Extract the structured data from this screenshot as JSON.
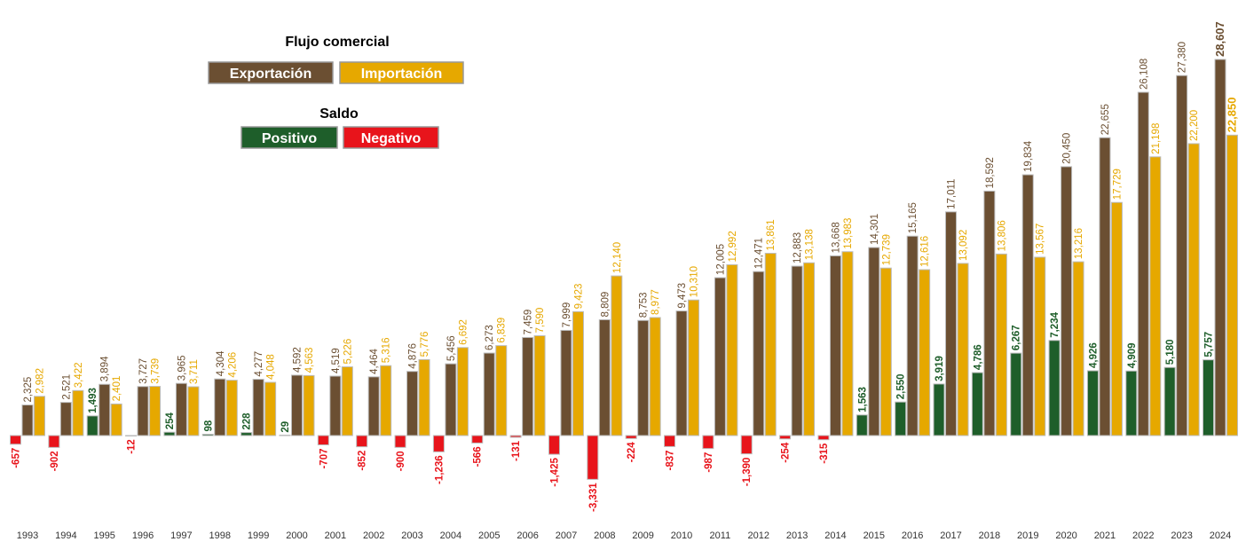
{
  "chart_data": {
    "type": "bar",
    "legend_title": "Flujo comercial",
    "categories": [
      "1993",
      "1994",
      "1995",
      "1996",
      "1997",
      "1998",
      "1999",
      "2000",
      "2001",
      "2002",
      "2003",
      "2004",
      "2005",
      "2006",
      "2007",
      "2008",
      "2009",
      "2010",
      "2011",
      "2012",
      "2013",
      "2014",
      "2015",
      "2016",
      "2017",
      "2018",
      "2019",
      "2020",
      "2021",
      "2022",
      "2023",
      "2024"
    ],
    "series": [
      {
        "name": "Exportación",
        "color": "#6b4f32",
        "values": [
          2325,
          2521,
          3894,
          3727,
          3965,
          4304,
          4277,
          4592,
          4519,
          4464,
          4876,
          5456,
          6273,
          7459,
          7999,
          8809,
          8753,
          9473,
          12005,
          12471,
          12883,
          13668,
          14301,
          15165,
          17011,
          18592,
          19834,
          20450,
          22655,
          26108,
          27380,
          28607
        ],
        "value_labels": [
          "2,325",
          "2,521",
          "3,894",
          "3,727",
          "3,965",
          "4,304",
          "4,277",
          "4,592",
          "4,519",
          "4,464",
          "4,876",
          "5,456",
          "6,273",
          "7,459",
          "7,999",
          "8,809",
          "8,753",
          "9,473",
          "12,005",
          "12,471",
          "12,883",
          "13,668",
          "14,301",
          "15,165",
          "17,011",
          "18,592",
          "19,834",
          "20,450",
          "22,655",
          "26,108",
          "27,380",
          "28,607"
        ]
      },
      {
        "name": "Importación",
        "color": "#e6a800",
        "values": [
          2982,
          3422,
          2401,
          3739,
          3711,
          4206,
          4048,
          4563,
          5226,
          5316,
          5776,
          6692,
          6839,
          7590,
          9423,
          12140,
          8977,
          10310,
          12992,
          13861,
          13138,
          13983,
          12739,
          12616,
          13092,
          13806,
          13567,
          13216,
          17729,
          21198,
          22200,
          22850
        ],
        "value_labels": [
          "2,982",
          "3,422",
          "2,401",
          "3,739",
          "3,711",
          "4,206",
          "4,048",
          "4,563",
          "5,226",
          "5,316",
          "5,776",
          "6,692",
          "6,839",
          "7,590",
          "9,423",
          "12,140",
          "8,977",
          "10,310",
          "12,992",
          "13,861",
          "13,138",
          "13,983",
          "12,739",
          "12,616",
          "13,092",
          "13,806",
          "13,567",
          "13,216",
          "17,729",
          "21,198",
          "22,200",
          "22,850"
        ]
      }
    ],
    "balance": {
      "name": "Saldo",
      "positive": {
        "name": "Positivo",
        "color": "#1e5e2a"
      },
      "negative": {
        "name": "Negativo",
        "color": "#e8141b"
      },
      "values": [
        -657,
        -902,
        1493,
        -12,
        254,
        98,
        228,
        29,
        -707,
        -852,
        -900,
        -1236,
        -566,
        -131,
        -1425,
        -3331,
        -224,
        -837,
        -987,
        -1390,
        -254,
        -315,
        1563,
        2550,
        3919,
        4786,
        6267,
        7234,
        4926,
        4909,
        5180,
        5757
      ],
      "value_labels": [
        "-657",
        "-902",
        "1,493",
        "-12",
        "254",
        "98",
        "228",
        "29",
        "-707",
        "-852",
        "-900",
        "-1,236",
        "-566",
        "-131",
        "-1,425",
        "-3,331",
        "-224",
        "-837",
        "-987",
        "-1,390",
        "-254",
        "-315",
        "1,563",
        "2,550",
        "3,919",
        "4,786",
        "6,267",
        "7,234",
        "4,926",
        "4,909",
        "5,180",
        "5,757"
      ]
    }
  }
}
